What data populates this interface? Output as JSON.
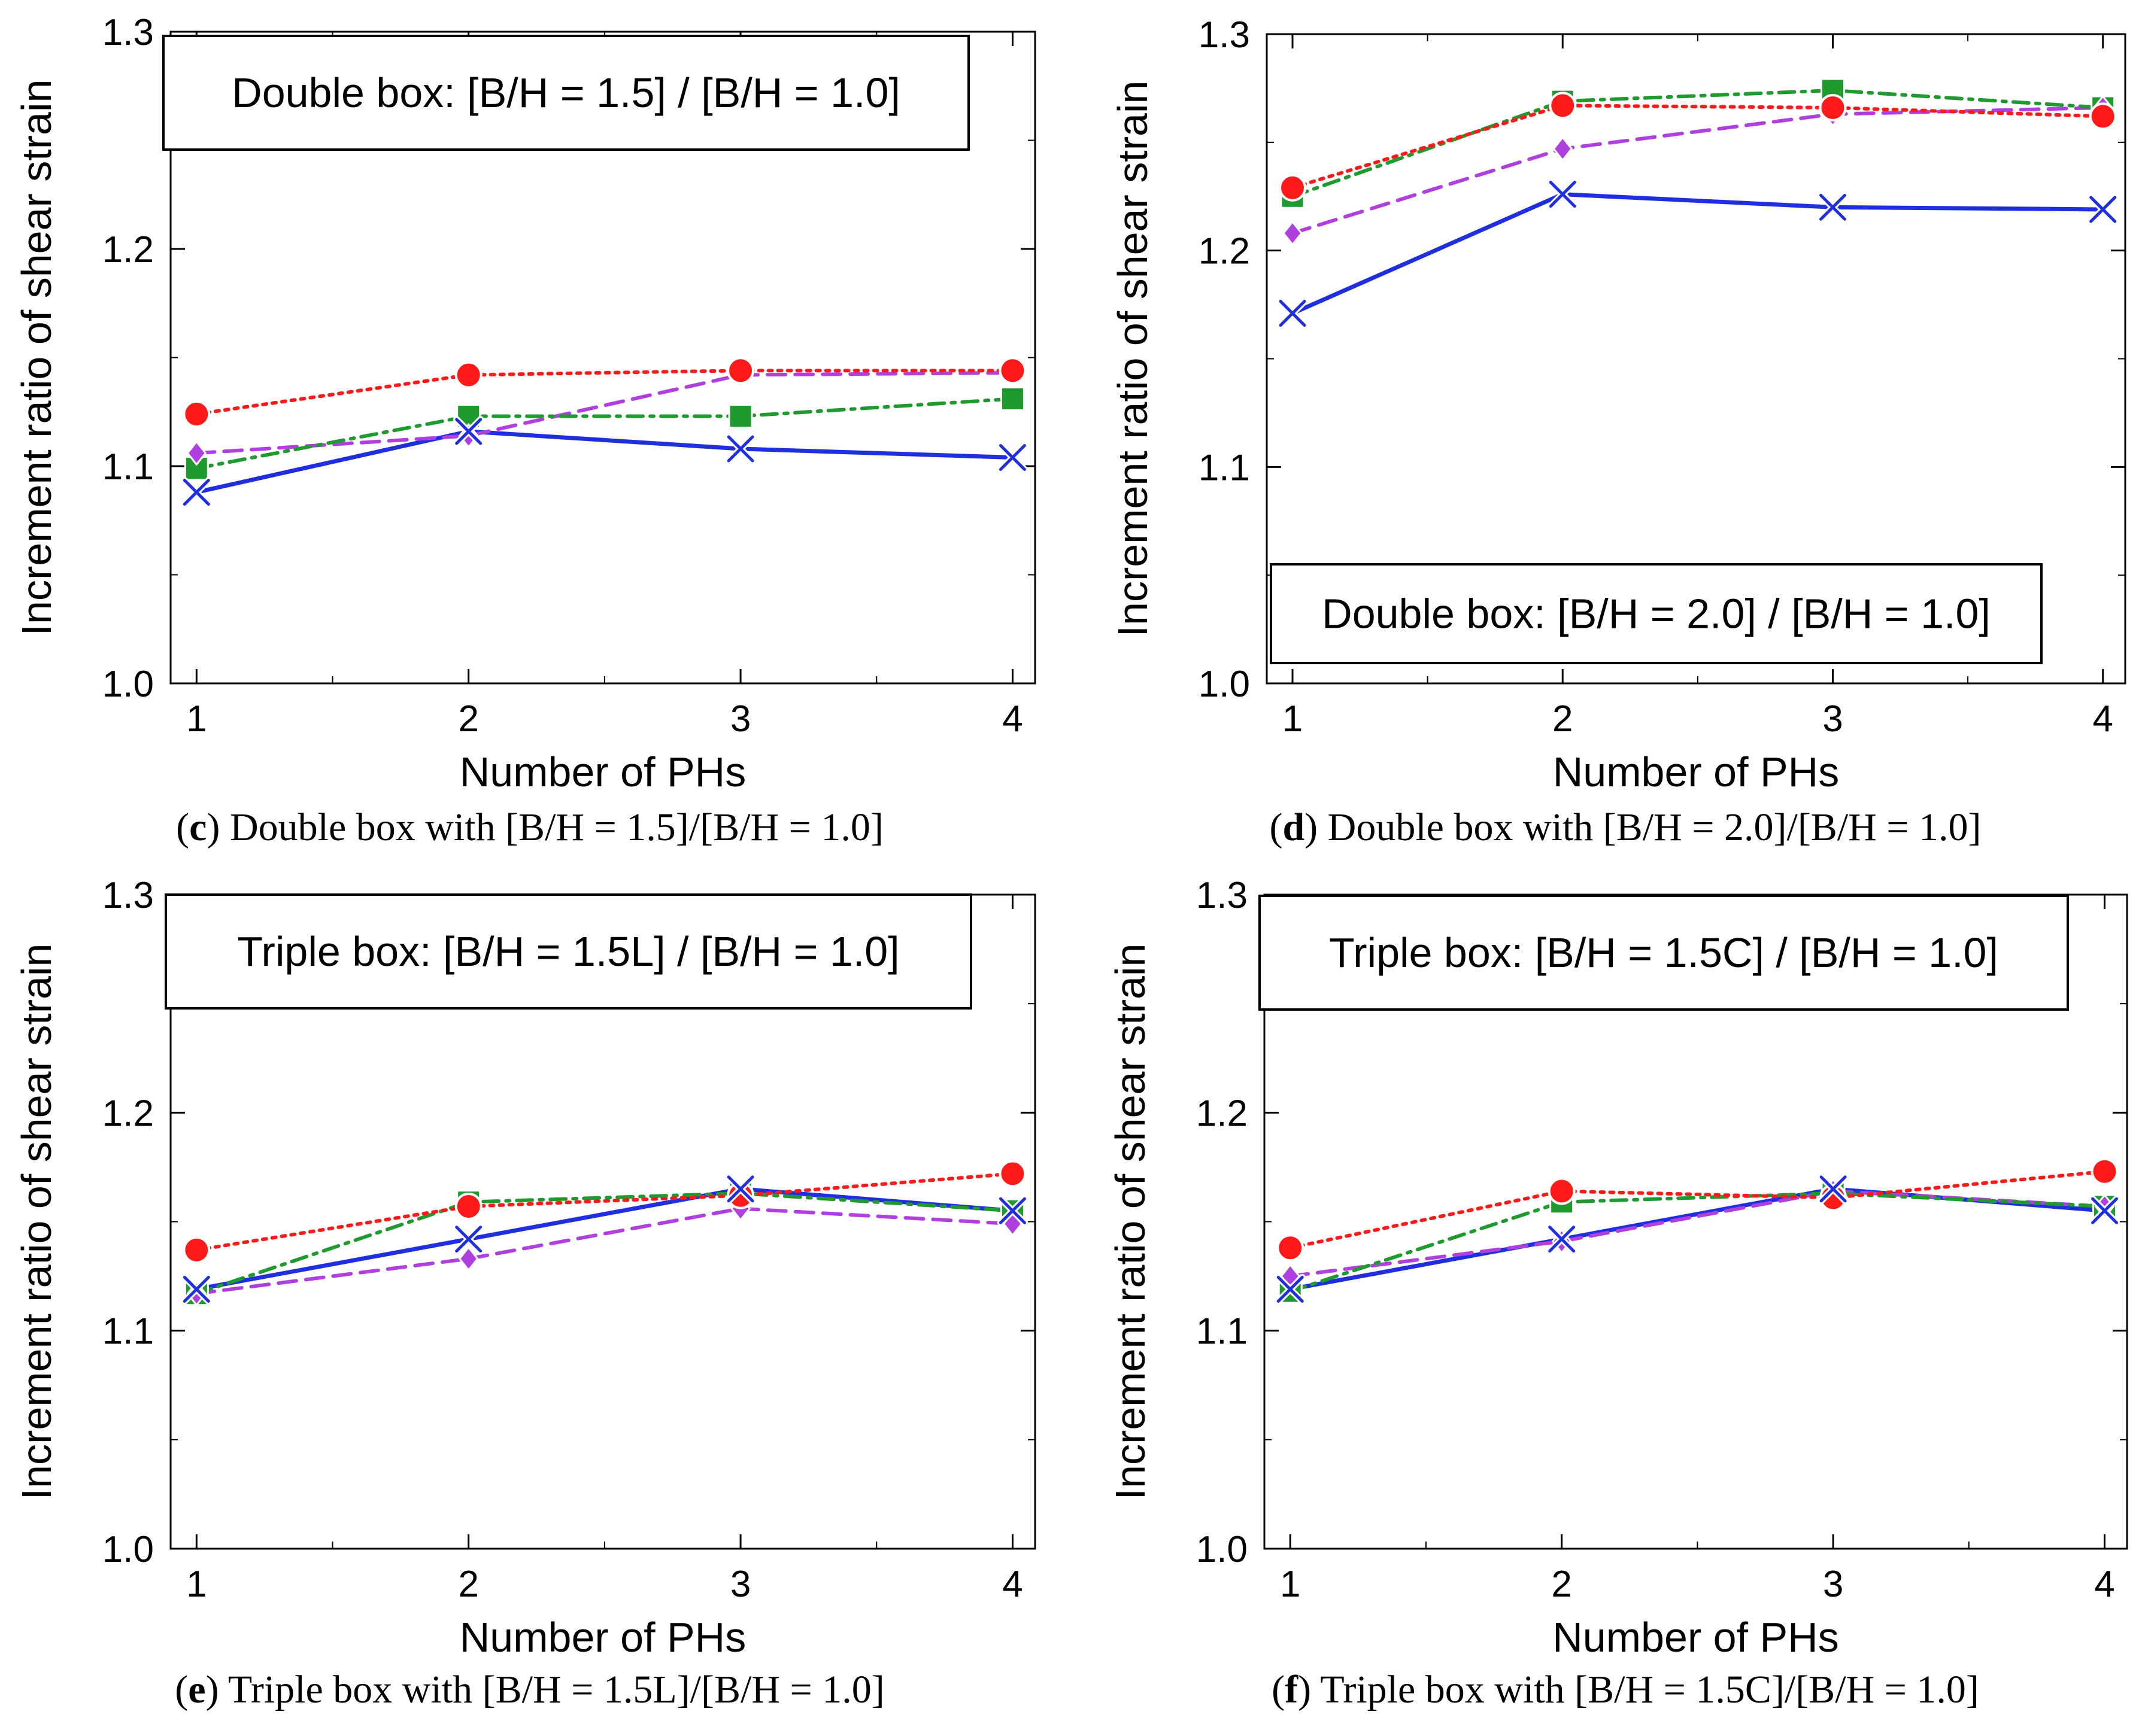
{
  "colors": {
    "series_x": "#1f2fe0",
    "series_diamond": "#b03fe0",
    "series_square": "#1f9a2f",
    "series_circle": "#ff1a1a"
  },
  "chart_data": [
    {
      "type": "line",
      "panel": "c",
      "caption_letter": "c",
      "caption_text": " Double box with [B/H = 1.5]/[B/H = 1.0]",
      "legend_box": "Double box: [B/H = 1.5] / [B/H = 1.0]",
      "legend_placement": "top-left",
      "xlabel": "Number of PHs",
      "ylabel": "Increment ratio of shear strain",
      "x": [
        1,
        2,
        3,
        4
      ],
      "xticks": [
        "1",
        "2",
        "3",
        "4"
      ],
      "ylim": [
        1.0,
        1.3
      ],
      "yticks": [
        "1.0",
        "1.1",
        "1.2",
        "1.3"
      ],
      "grid": false,
      "series": [
        {
          "name": "x-marker solid",
          "marker": "x",
          "dash": "solid",
          "color": "#1f2fe0",
          "values": [
            1.088,
            1.116,
            1.108,
            1.104
          ]
        },
        {
          "name": "diamond dashed",
          "marker": "diamond",
          "dash": "dashed",
          "color": "#b03fe0",
          "values": [
            1.106,
            1.114,
            1.142,
            1.143
          ]
        },
        {
          "name": "square dash-dot",
          "marker": "square",
          "dash": "dashdot",
          "color": "#1f9a2f",
          "values": [
            1.099,
            1.123,
            1.123,
            1.131
          ]
        },
        {
          "name": "circle dotted",
          "marker": "circle",
          "dash": "dotted",
          "color": "#ff1a1a",
          "values": [
            1.124,
            1.142,
            1.144,
            1.144
          ]
        }
      ]
    },
    {
      "type": "line",
      "panel": "d",
      "caption_letter": "d",
      "caption_text": " Double box with [B/H = 2.0]/[B/H = 1.0]",
      "legend_box": "Double box: [B/H = 2.0] / [B/H = 1.0]",
      "legend_placement": "bottom-right",
      "xlabel": "Number of PHs",
      "ylabel": "Increment ratio of shear strain",
      "x": [
        1,
        2,
        3,
        4
      ],
      "xticks": [
        "1",
        "2",
        "3",
        "4"
      ],
      "ylim": [
        1.0,
        1.3
      ],
      "yticks": [
        "1.0",
        "1.1",
        "1.2",
        "1.3"
      ],
      "grid": false,
      "series": [
        {
          "name": "x-marker solid",
          "marker": "x",
          "dash": "solid",
          "color": "#1f2fe0",
          "values": [
            1.171,
            1.226,
            1.22,
            1.219
          ]
        },
        {
          "name": "diamond dashed",
          "marker": "diamond",
          "dash": "dashed",
          "color": "#b03fe0",
          "values": [
            1.208,
            1.247,
            1.263,
            1.266
          ]
        },
        {
          "name": "square dash-dot",
          "marker": "square",
          "dash": "dashdot",
          "color": "#1f9a2f",
          "values": [
            1.225,
            1.269,
            1.274,
            1.266
          ]
        },
        {
          "name": "circle dotted",
          "marker": "circle",
          "dash": "dotted",
          "color": "#ff1a1a",
          "values": [
            1.229,
            1.267,
            1.266,
            1.262
          ]
        }
      ]
    },
    {
      "type": "line",
      "panel": "e",
      "caption_letter": "e",
      "caption_text": " Triple box with [B/H = 1.5L]/[B/H = 1.0]",
      "legend_box": "Triple box: [B/H = 1.5L] / [B/H = 1.0]",
      "legend_placement": "top-left",
      "xlabel": "Number of PHs",
      "ylabel": "Increment ratio of shear strain",
      "x": [
        1,
        2,
        3,
        4
      ],
      "xticks": [
        "1",
        "2",
        "3",
        "4"
      ],
      "ylim": [
        1.0,
        1.3
      ],
      "yticks": [
        "1.0",
        "1.1",
        "1.2",
        "1.3"
      ],
      "grid": false,
      "series": [
        {
          "name": "x-marker solid",
          "marker": "x",
          "dash": "solid",
          "color": "#1f2fe0",
          "values": [
            1.119,
            1.142,
            1.165,
            1.155
          ]
        },
        {
          "name": "diamond dashed",
          "marker": "diamond",
          "dash": "dashed",
          "color": "#b03fe0",
          "values": [
            1.117,
            1.133,
            1.156,
            1.149
          ]
        },
        {
          "name": "square dash-dot",
          "marker": "square",
          "dash": "dashdot",
          "color": "#1f9a2f",
          "values": [
            1.117,
            1.159,
            1.163,
            1.155
          ]
        },
        {
          "name": "circle dotted",
          "marker": "circle",
          "dash": "dotted",
          "color": "#ff1a1a",
          "values": [
            1.137,
            1.157,
            1.162,
            1.172
          ]
        }
      ]
    },
    {
      "type": "line",
      "panel": "f",
      "caption_letter": "f",
      "caption_text": " Triple box with [B/H = 1.5C]/[B/H = 1.0]",
      "legend_box": "Triple box: [B/H = 1.5C] / [B/H = 1.0]",
      "legend_placement": "top-left",
      "xlabel": "Number of PHs",
      "ylabel": "Increment ratio of shear strain",
      "x": [
        1,
        2,
        3,
        4
      ],
      "xticks": [
        "1",
        "2",
        "3",
        "4"
      ],
      "ylim": [
        1.0,
        1.3
      ],
      "yticks": [
        "1.0",
        "1.1",
        "1.2",
        "1.3"
      ],
      "grid": false,
      "series": [
        {
          "name": "x-marker solid",
          "marker": "x",
          "dash": "solid",
          "color": "#1f2fe0",
          "values": [
            1.119,
            1.142,
            1.165,
            1.155
          ]
        },
        {
          "name": "diamond dashed",
          "marker": "diamond",
          "dash": "dashed",
          "color": "#b03fe0",
          "values": [
            1.125,
            1.141,
            1.164,
            1.157
          ]
        },
        {
          "name": "square dash-dot",
          "marker": "square",
          "dash": "dashdot",
          "color": "#1f9a2f",
          "values": [
            1.118,
            1.159,
            1.163,
            1.157
          ]
        },
        {
          "name": "circle dotted",
          "marker": "circle",
          "dash": "dotted",
          "color": "#ff1a1a",
          "values": [
            1.138,
            1.164,
            1.161,
            1.173
          ]
        }
      ]
    }
  ]
}
